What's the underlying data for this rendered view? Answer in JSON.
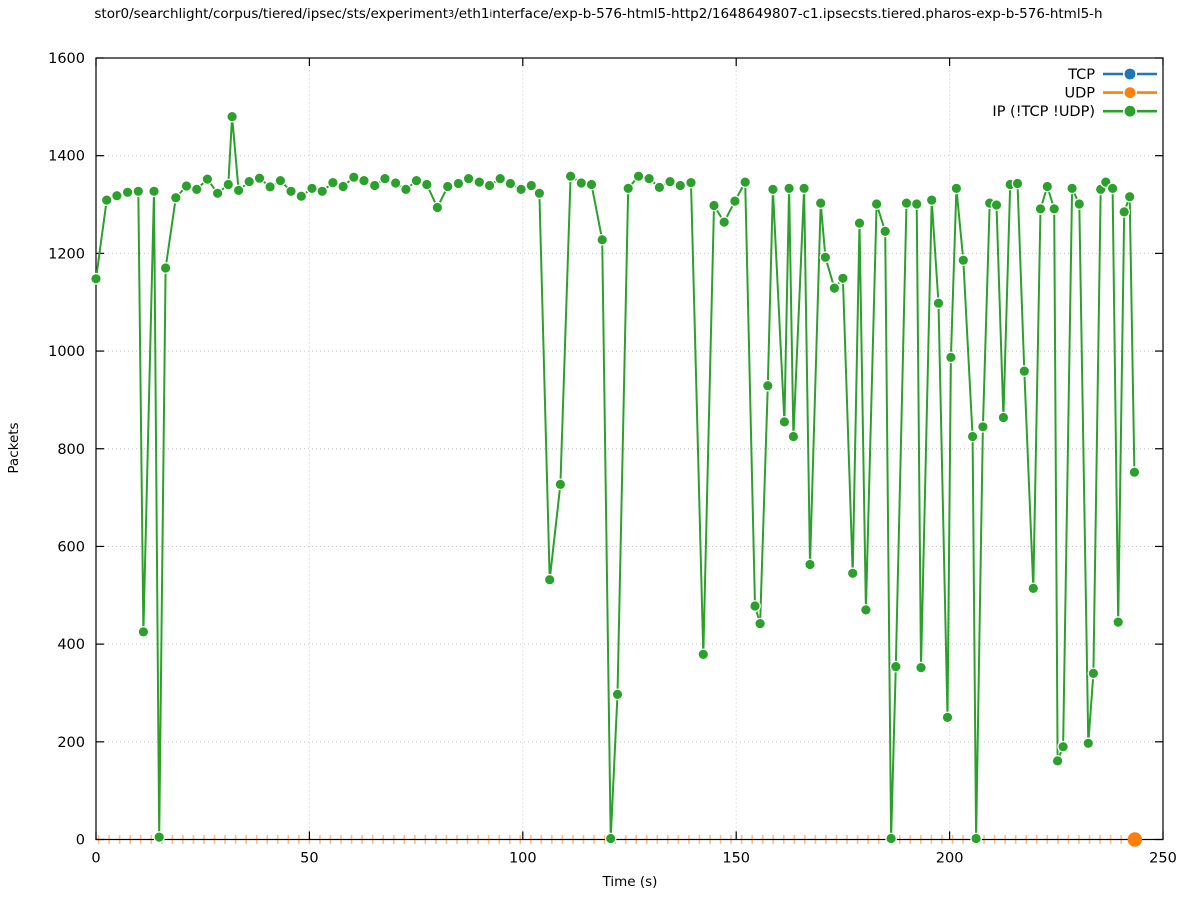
{
  "title": {
    "segments": [
      {
        "text": "stor0/searchlight/corpus/tiered/ipsec/sts/experiment",
        "sub": false
      },
      {
        "text": "3",
        "sub": true
      },
      {
        "text": "/eth1",
        "sub": false
      },
      {
        "text": "i",
        "sub": true
      },
      {
        "text": "nterface/exp-b-576-html5-http2/1648649807-c1.ipsecsts.tiered.pharos-exp-b-576-html5-h",
        "sub": false
      }
    ]
  },
  "axes": {
    "x": {
      "label": "Time (s)",
      "min": 0,
      "max": 250,
      "major_ticks": [
        0,
        50,
        100,
        150,
        200,
        250
      ]
    },
    "y": {
      "label": "Packets",
      "min": 0,
      "max": 1600,
      "major_ticks": [
        0,
        200,
        400,
        600,
        800,
        1000,
        1200,
        1400,
        1600
      ]
    }
  },
  "legend": {
    "position": "top-right",
    "entries": [
      {
        "label": "TCP",
        "color": "#1f77b4"
      },
      {
        "label": "UDP",
        "color": "#ff7f0e"
      },
      {
        "label": "IP (!TCP  !UDP)",
        "color": "#2ca02c"
      }
    ]
  },
  "chart_data": {
    "type": "line",
    "xlabel": "Time (s)",
    "ylabel": "Packets",
    "xlim": [
      0,
      250
    ],
    "ylim": [
      0,
      1600
    ],
    "grid": true,
    "marker": "filled-circle",
    "series": [
      {
        "name": "TCP",
        "color": "#1f77b4",
        "visible_points": 0,
        "values_all_zero": true
      },
      {
        "name": "UDP",
        "color": "#ff7f0e",
        "values_all_zero": true,
        "zero_run": {
          "t_start": 0.6,
          "t_end": 241.0,
          "interval": 2.47,
          "value": 0
        },
        "final_point": [
          243.4,
          0
        ]
      },
      {
        "name": "IP (!TCP  !UDP)",
        "color": "#2ca02c",
        "points": [
          [
            0.0,
            1148
          ],
          [
            2.5,
            1309
          ],
          [
            4.9,
            1318
          ],
          [
            7.4,
            1325
          ],
          [
            9.9,
            1327
          ],
          [
            11.1,
            425
          ],
          [
            13.6,
            1327
          ],
          [
            14.8,
            5
          ],
          [
            16.3,
            1170
          ],
          [
            18.7,
            1314
          ],
          [
            21.2,
            1338
          ],
          [
            23.6,
            1331
          ],
          [
            26.1,
            1352
          ],
          [
            28.5,
            1323
          ],
          [
            31.0,
            1341
          ],
          [
            31.9,
            1480
          ],
          [
            33.4,
            1329
          ],
          [
            35.9,
            1347
          ],
          [
            38.3,
            1354
          ],
          [
            40.8,
            1336
          ],
          [
            43.2,
            1349
          ],
          [
            45.7,
            1327
          ],
          [
            48.1,
            1317
          ],
          [
            50.6,
            1333
          ],
          [
            53.0,
            1327
          ],
          [
            55.5,
            1345
          ],
          [
            57.9,
            1337
          ],
          [
            60.4,
            1356
          ],
          [
            62.8,
            1349
          ],
          [
            65.3,
            1339
          ],
          [
            67.7,
            1353
          ],
          [
            70.2,
            1344
          ],
          [
            72.6,
            1331
          ],
          [
            75.1,
            1349
          ],
          [
            77.5,
            1341
          ],
          [
            80.0,
            1294
          ],
          [
            82.4,
            1337
          ],
          [
            84.9,
            1343
          ],
          [
            87.3,
            1353
          ],
          [
            89.8,
            1346
          ],
          [
            92.2,
            1339
          ],
          [
            94.7,
            1353
          ],
          [
            97.1,
            1343
          ],
          [
            99.6,
            1331
          ],
          [
            102.0,
            1339
          ],
          [
            103.9,
            1323
          ],
          [
            106.3,
            532
          ],
          [
            108.8,
            727
          ],
          [
            111.2,
            1358
          ],
          [
            113.7,
            1344
          ],
          [
            116.1,
            1341
          ],
          [
            118.6,
            1228
          ],
          [
            120.6,
            2
          ],
          [
            122.2,
            297
          ],
          [
            124.7,
            1333
          ],
          [
            127.1,
            1358
          ],
          [
            129.6,
            1353
          ],
          [
            132.0,
            1335
          ],
          [
            134.5,
            1347
          ],
          [
            136.9,
            1339
          ],
          [
            139.4,
            1345
          ],
          [
            142.3,
            379
          ],
          [
            144.8,
            1298
          ],
          [
            147.2,
            1264
          ],
          [
            149.7,
            1307
          ],
          [
            152.1,
            1346
          ],
          [
            154.4,
            478
          ],
          [
            155.6,
            442
          ],
          [
            157.4,
            929
          ],
          [
            158.6,
            1331
          ],
          [
            161.3,
            855
          ],
          [
            162.4,
            1333
          ],
          [
            163.4,
            825
          ],
          [
            165.9,
            1333
          ],
          [
            167.3,
            563
          ],
          [
            169.8,
            1303
          ],
          [
            170.9,
            1192
          ],
          [
            173.0,
            1129
          ],
          [
            175.0,
            1149
          ],
          [
            177.3,
            545
          ],
          [
            178.9,
            1262
          ],
          [
            180.4,
            470
          ],
          [
            182.9,
            1301
          ],
          [
            184.9,
            1245
          ],
          [
            186.3,
            2
          ],
          [
            187.4,
            354
          ],
          [
            189.9,
            1303
          ],
          [
            192.3,
            1301
          ],
          [
            193.3,
            352
          ],
          [
            195.8,
            1309
          ],
          [
            197.4,
            1098
          ],
          [
            199.5,
            250
          ],
          [
            200.3,
            987
          ],
          [
            201.6,
            1333
          ],
          [
            203.2,
            1186
          ],
          [
            205.4,
            825
          ],
          [
            206.2,
            2
          ],
          [
            207.8,
            845
          ],
          [
            209.4,
            1303
          ],
          [
            211.0,
            1299
          ],
          [
            212.6,
            864
          ],
          [
            214.2,
            1341
          ],
          [
            215.9,
            1343
          ],
          [
            217.5,
            959
          ],
          [
            219.6,
            514
          ],
          [
            221.3,
            1291
          ],
          [
            222.9,
            1337
          ],
          [
            224.5,
            1291
          ],
          [
            225.3,
            161
          ],
          [
            226.6,
            190
          ],
          [
            228.7,
            1333
          ],
          [
            230.4,
            1301
          ],
          [
            232.5,
            197
          ],
          [
            233.7,
            340
          ],
          [
            235.4,
            1331
          ],
          [
            236.6,
            1346
          ],
          [
            238.2,
            1333
          ],
          [
            239.5,
            445
          ],
          [
            240.9,
            1285
          ],
          [
            242.2,
            1316
          ],
          [
            243.3,
            752
          ]
        ]
      }
    ]
  },
  "style": {
    "grid_color": "#c6c6c6",
    "border_color": "#000000",
    "background": "#ffffff"
  }
}
